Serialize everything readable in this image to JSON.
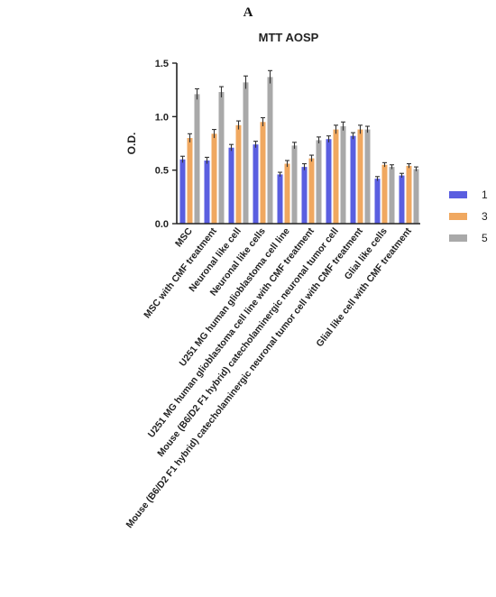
{
  "panel_label": "A",
  "chart_data": {
    "type": "bar",
    "title": "MTT AOSP",
    "xlabel": "",
    "ylabel": "O.D.",
    "ylim": [
      0,
      1.5
    ],
    "yticks": [
      "0.0",
      "0.5",
      "1.0",
      "1.5"
    ],
    "grid": false,
    "legend_position": "right",
    "categories": [
      "MSC",
      "MSC with CMF treatment",
      "Neuronal like cell",
      "Neuronal like cells",
      "U251 MG human glioblastoma cell line",
      "U251 MG human glioblastoma cell line with CMF treatment",
      "Mouse (B6/D2 F1 hybrid) catecholaminergic neuronal tumor cell",
      "Mouse (B6/D2 F1 hybrid) catecholaminergic neuronal tumor cell with CMF treatment",
      "Glial like cells",
      "Glial like cell with CMF treatment"
    ],
    "series": [
      {
        "name": "1",
        "color": "#5a5ee0",
        "values": [
          0.6,
          0.59,
          0.71,
          0.74,
          0.46,
          0.53,
          0.79,
          0.82,
          0.42,
          0.45
        ],
        "errors": [
          0.03,
          0.03,
          0.03,
          0.03,
          0.02,
          0.03,
          0.03,
          0.03,
          0.02,
          0.02
        ]
      },
      {
        "name": "3",
        "color": "#f0a860",
        "values": [
          0.8,
          0.84,
          0.92,
          0.95,
          0.56,
          0.61,
          0.88,
          0.88,
          0.55,
          0.54
        ],
        "errors": [
          0.04,
          0.04,
          0.04,
          0.04,
          0.03,
          0.03,
          0.04,
          0.04,
          0.02,
          0.02
        ]
      },
      {
        "name": "5",
        "color": "#a9a9a9",
        "values": [
          1.21,
          1.23,
          1.32,
          1.37,
          0.73,
          0.78,
          0.91,
          0.88,
          0.53,
          0.51
        ],
        "errors": [
          0.05,
          0.05,
          0.06,
          0.06,
          0.03,
          0.03,
          0.04,
          0.03,
          0.02,
          0.02
        ]
      }
    ]
  }
}
